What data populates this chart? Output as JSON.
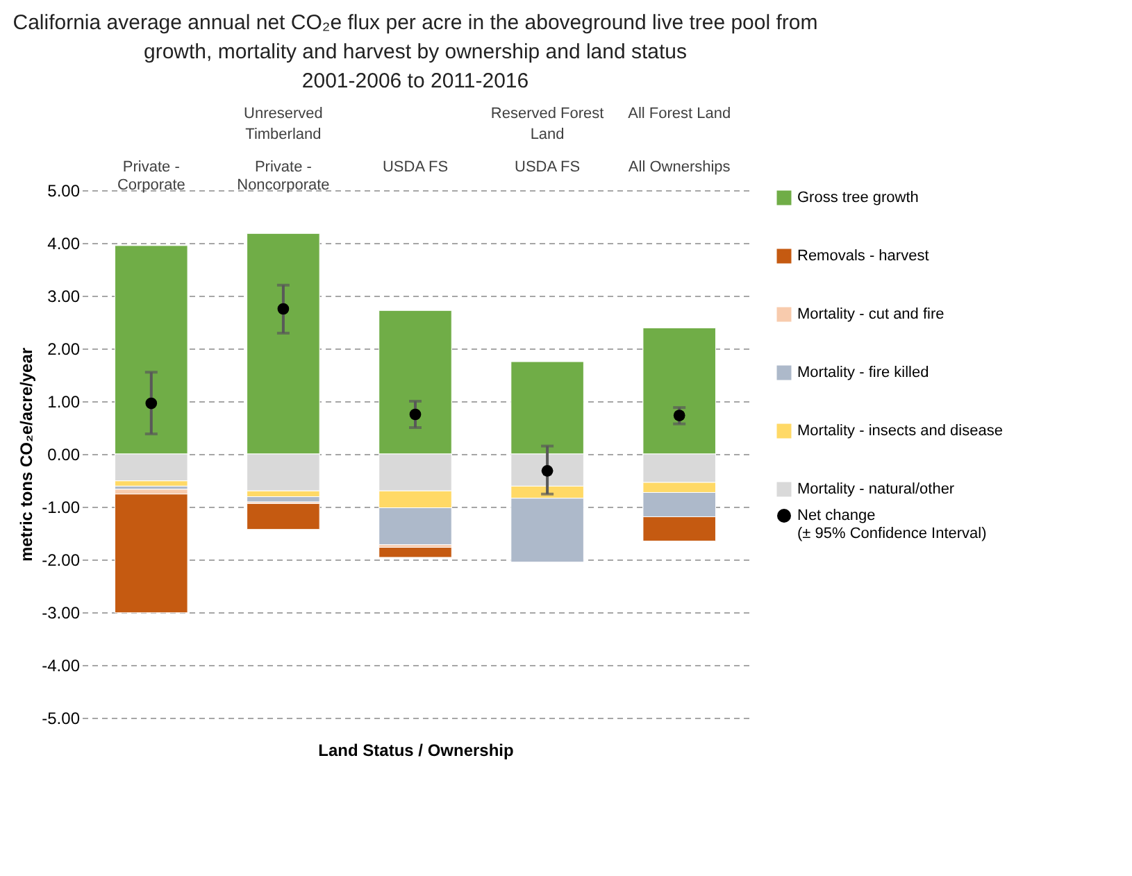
{
  "chart_data": {
    "type": "bar",
    "stacked": true,
    "title": "California average annual net CO₂e flux per acre in the aboveground live tree pool from growth, mortality and harvest by ownership and land status",
    "subtitle": "2001-2006 to 2011-2016",
    "xlabel": "Land Status / Ownership",
    "ylabel": "metric tons CO₂e/acre/year",
    "annotations": [
      "Unreserved Timberland",
      "Reserved Forest Land",
      "All Forest Land"
    ],
    "categories": [
      "Private - Corporate",
      "Private - Noncorporate",
      "USDA FS",
      "USDA FS",
      "All Ownerships"
    ],
    "series": [
      {
        "name": "Gross tree growth",
        "color": "#70ad47",
        "values": [
          3.95,
          4.18,
          2.72,
          1.75,
          2.39
        ]
      },
      {
        "name": "Mortality - natural/other",
        "color": "#d9d9d9",
        "values": [
          -0.51,
          -0.7,
          -0.7,
          -0.61,
          -0.54
        ]
      },
      {
        "name": "Mortality - insects and disease",
        "color": "#ffd966",
        "values": [
          -0.1,
          -0.11,
          -0.32,
          -0.23,
          -0.19
        ]
      },
      {
        "name": "Mortality - fire killed",
        "color": "#adb9ca",
        "values": [
          -0.06,
          -0.1,
          -0.7,
          -1.21,
          -0.46
        ]
      },
      {
        "name": "Mortality - cut and fire",
        "color": "#f8cbad",
        "values": [
          -0.09,
          -0.03,
          -0.05,
          null,
          null
        ]
      },
      {
        "name": "Removals - harvest",
        "color": "#c55a11",
        "values": [
          -2.25,
          -0.49,
          -0.19,
          null,
          -0.46
        ]
      },
      {
        "name": "Net change (± 95% Confidence Interval)",
        "type": "scatter",
        "color": "#000000",
        "values": [
          0.96,
          2.75,
          0.75,
          -0.32,
          0.73
        ],
        "errors": [
          [
            0.38,
            1.55
          ],
          [
            2.29,
            3.2
          ],
          [
            0.5,
            1.0
          ],
          [
            -0.76,
            0.15
          ],
          [
            0.57,
            0.88
          ]
        ]
      }
    ],
    "ylim": [
      -5,
      5
    ],
    "yticks": [
      {
        "value": -5,
        "label": "-5.00"
      },
      {
        "value": -4,
        "label": "-4.00"
      },
      {
        "value": -3,
        "label": "-3.00"
      },
      {
        "value": -2,
        "label": "-2.00"
      },
      {
        "value": -1,
        "label": "-1.00"
      },
      {
        "value": 0,
        "label": "0.00"
      },
      {
        "value": 1,
        "label": "1.00"
      },
      {
        "value": 2,
        "label": "2.00"
      },
      {
        "value": 3,
        "label": "3.00"
      },
      {
        "value": 4,
        "label": "4.00"
      },
      {
        "value": 5,
        "label": "5.00"
      }
    ],
    "grid": "y",
    "legend": "right",
    "marker": "circle"
  }
}
